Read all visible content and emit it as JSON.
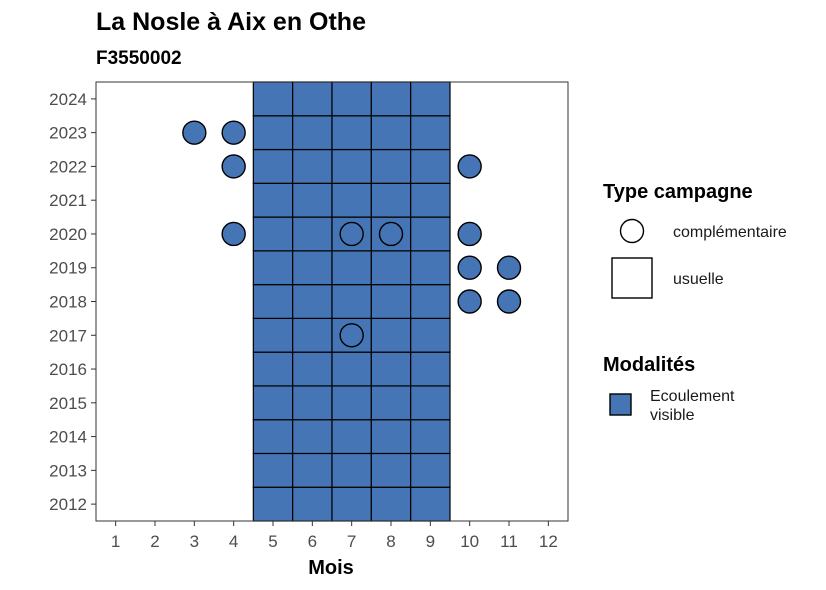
{
  "chart_data": {
    "type": "heatmap",
    "title": "La Nosle à Aix en Othe",
    "subtitle": "F3550002",
    "xlabel": "Mois",
    "ylabel": "",
    "x_ticks": [
      "1",
      "2",
      "3",
      "4",
      "5",
      "6",
      "7",
      "8",
      "9",
      "10",
      "11",
      "12"
    ],
    "y_ticks": [
      "2012",
      "2013",
      "2014",
      "2015",
      "2016",
      "2017",
      "2018",
      "2019",
      "2020",
      "2021",
      "2022",
      "2023",
      "2024"
    ],
    "xlim": [
      0.5,
      12.5
    ],
    "ylim": [
      2011.5,
      2024.5
    ],
    "grid": false,
    "fill_color": "#4575b4",
    "series": [
      {
        "name": "usuelle",
        "shape": "square",
        "modalite": "Ecoulement visible",
        "months": [
          5,
          6,
          7,
          8,
          9
        ],
        "years": [
          2012,
          2024
        ]
      },
      {
        "name": "complémentaire",
        "shape": "circle",
        "modalite": "Ecoulement visible",
        "points": [
          {
            "x": 3,
            "y": 2023
          },
          {
            "x": 4,
            "y": 2023
          },
          {
            "x": 4,
            "y": 2022
          },
          {
            "x": 10,
            "y": 2022
          },
          {
            "x": 4,
            "y": 2020
          },
          {
            "x": 7,
            "y": 2020
          },
          {
            "x": 8,
            "y": 2020
          },
          {
            "x": 10,
            "y": 2020
          },
          {
            "x": 10,
            "y": 2019
          },
          {
            "x": 11,
            "y": 2019
          },
          {
            "x": 10,
            "y": 2018
          },
          {
            "x": 11,
            "y": 2018
          },
          {
            "x": 7,
            "y": 2017
          }
        ]
      }
    ],
    "legend": {
      "placement": "right",
      "shape_title": "Type campagne",
      "shape_items": [
        "complémentaire",
        "usuelle"
      ],
      "fill_title": "Modalités",
      "fill_items": [
        "Ecoulement\nvisible"
      ]
    }
  }
}
